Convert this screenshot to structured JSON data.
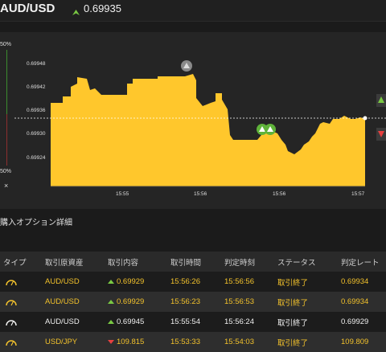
{
  "header": {
    "pair": "AUD/USD",
    "price": "0.69935"
  },
  "side": {
    "top_pct": "50%",
    "bottom_pct": "50%",
    "close": "×"
  },
  "chart_data": {
    "type": "area",
    "y_ticks": [
      "0.69948",
      "0.69942",
      "0.69936",
      "0.69930",
      "0.69924"
    ],
    "x_ticks": [
      "15:55",
      "15:56",
      "15:56",
      "15:57"
    ],
    "current_rate": 0.69935,
    "colors": {
      "fill": "#ffc72c",
      "background": "#252525"
    }
  },
  "section": {
    "title": "購入オプション詳細"
  },
  "table": {
    "headers": [
      "タイプ",
      "取引原資産",
      "取引内容",
      "取引時間",
      "判定時刻",
      "ステータス",
      "判定レート"
    ],
    "rows": [
      {
        "asset": "AUD/USD",
        "direction": "up",
        "rate": "0.69929",
        "time": "15:56:26",
        "judge_time": "15:56:56",
        "status": "取引終了",
        "judge_rate": "0.69934"
      },
      {
        "asset": "AUD/USD",
        "direction": "up",
        "rate": "0.69929",
        "time": "15:56:23",
        "judge_time": "15:56:53",
        "status": "取引終了",
        "judge_rate": "0.69934"
      },
      {
        "asset": "AUD/USD",
        "direction": "up",
        "rate": "0.69945",
        "time": "15:55:54",
        "judge_time": "15:56:24",
        "status": "取引終了",
        "judge_rate": "0.69929"
      },
      {
        "asset": "USD/JPY",
        "direction": "down",
        "rate": "109.815",
        "time": "15:53:33",
        "judge_time": "15:54:03",
        "status": "取引終了",
        "judge_rate": "109.809"
      }
    ]
  }
}
